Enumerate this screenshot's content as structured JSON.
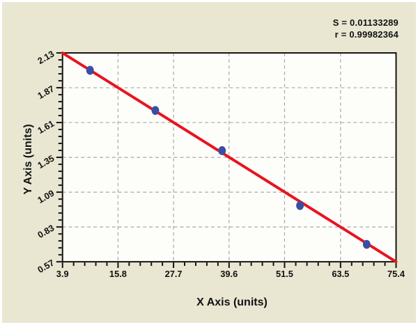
{
  "figure": {
    "background": "#e9e7d2",
    "frame_color": "#ffffff"
  },
  "chart_data": {
    "type": "scatter",
    "title": "",
    "xlabel": "X Axis (units)",
    "ylabel": "Y Axis (units)",
    "xlim": [
      3.9,
      75.4
    ],
    "ylim": [
      0.57,
      2.13
    ],
    "x_ticks": [
      "3.9",
      "15.8",
      "27.7",
      "39.6",
      "51.5",
      "63.5",
      "75.4"
    ],
    "y_ticks": [
      "0.57",
      "0.83",
      "1.09",
      "1.35",
      "1.61",
      "1.87",
      "2.13"
    ],
    "minor_ticks_per_interval": 4,
    "grid": "dashed",
    "legend": "none",
    "points": [
      {
        "x": 9.8,
        "y": 2.0
      },
      {
        "x": 23.8,
        "y": 1.7
      },
      {
        "x": 38.1,
        "y": 1.4
      },
      {
        "x": 54.8,
        "y": 0.99
      },
      {
        "x": 69.1,
        "y": 0.7
      }
    ],
    "fit_line": {
      "x1": 3.9,
      "y1": 2.13,
      "x2": 75.4,
      "y2": 0.57
    },
    "stats_lines": [
      "S = 0.01133289",
      "r = 0.99982364"
    ],
    "colors": {
      "line": "#e8141e",
      "marker": "#3b4ea5",
      "grid": "#a8a8a8",
      "plot_bg": "#fdfdfa",
      "axis": "#111111",
      "text": "#111111"
    }
  }
}
